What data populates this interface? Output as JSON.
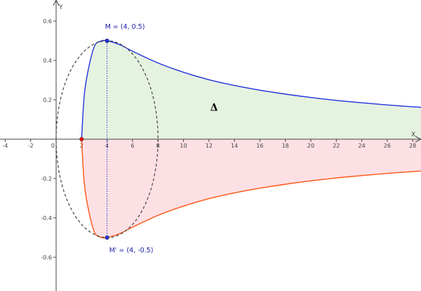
{
  "chart_data": {
    "type": "line",
    "axes": {
      "xlabel": "X",
      "ylabel": "Y",
      "xlim": [
        -5,
        28.8
      ],
      "ylim": [
        -0.78,
        0.74
      ],
      "x_ticks": [
        "-4",
        "-2",
        "0",
        "2",
        "4",
        "6",
        "8",
        "10",
        "12",
        "14",
        "16",
        "18",
        "20",
        "22",
        "24",
        "26",
        "28"
      ],
      "x_tick_values": [
        -4,
        -2,
        0,
        2,
        4,
        6,
        8,
        10,
        12,
        14,
        16,
        18,
        20,
        22,
        24,
        26,
        28
      ],
      "y_ticks": [
        "0.6",
        "0.4",
        "0.2",
        "-0.2",
        "-0.4",
        "-0.6"
      ],
      "y_tick_values": [
        0.6,
        0.4,
        0.2,
        -0.2,
        -0.4,
        -0.6
      ],
      "grid": false
    },
    "series": [
      {
        "color": "#2233dd",
        "fill": "#e6f2e0",
        "x": [
          2,
          2.2,
          2.5,
          3,
          3.5,
          4,
          5,
          6,
          8,
          10,
          12,
          14,
          16,
          18,
          20,
          22,
          24,
          26,
          28.8
        ],
        "y": [
          0,
          0.218,
          0.346,
          0.471,
          0.498,
          0.5,
          0.48,
          0.447,
          0.387,
          0.34,
          0.302,
          0.273,
          0.249,
          0.229,
          0.212,
          0.197,
          0.185,
          0.174,
          0.161
        ]
      },
      {
        "color": "#ff5511",
        "fill": "#fde0e4",
        "x": [
          2,
          2.2,
          2.5,
          3,
          3.5,
          4,
          5,
          6,
          8,
          10,
          12,
          14,
          16,
          18,
          20,
          22,
          24,
          26,
          28.8
        ],
        "y": [
          0,
          -0.218,
          -0.346,
          -0.471,
          -0.498,
          -0.5,
          -0.48,
          -0.447,
          -0.387,
          -0.34,
          -0.302,
          -0.273,
          -0.249,
          -0.229,
          -0.212,
          -0.197,
          -0.185,
          -0.174,
          -0.161
        ]
      }
    ],
    "ellipse": {
      "cx": 4,
      "cy": 0,
      "rx": 4,
      "ry": 0.5,
      "color": "#444444"
    },
    "points": [
      {
        "label": "M = (4, 0.5)",
        "x": 4,
        "y": 0.5,
        "color": "#2233dd",
        "label_color": "#1a1aa6"
      },
      {
        "label": "M' = (4, -0.5)",
        "x": 4,
        "y": -0.5,
        "color": "#2233dd",
        "label_color": "#1a1aa6"
      },
      {
        "label": "",
        "x": 2,
        "y": 0,
        "color": "#ee1111",
        "label_color": "#ee1111"
      }
    ],
    "guide_line": {
      "x": 4,
      "y1": -0.5,
      "y2": 0.5,
      "color": "#2233dd"
    },
    "annotation": {
      "text": "Δ",
      "x": 12.4,
      "y": 0.145
    }
  }
}
